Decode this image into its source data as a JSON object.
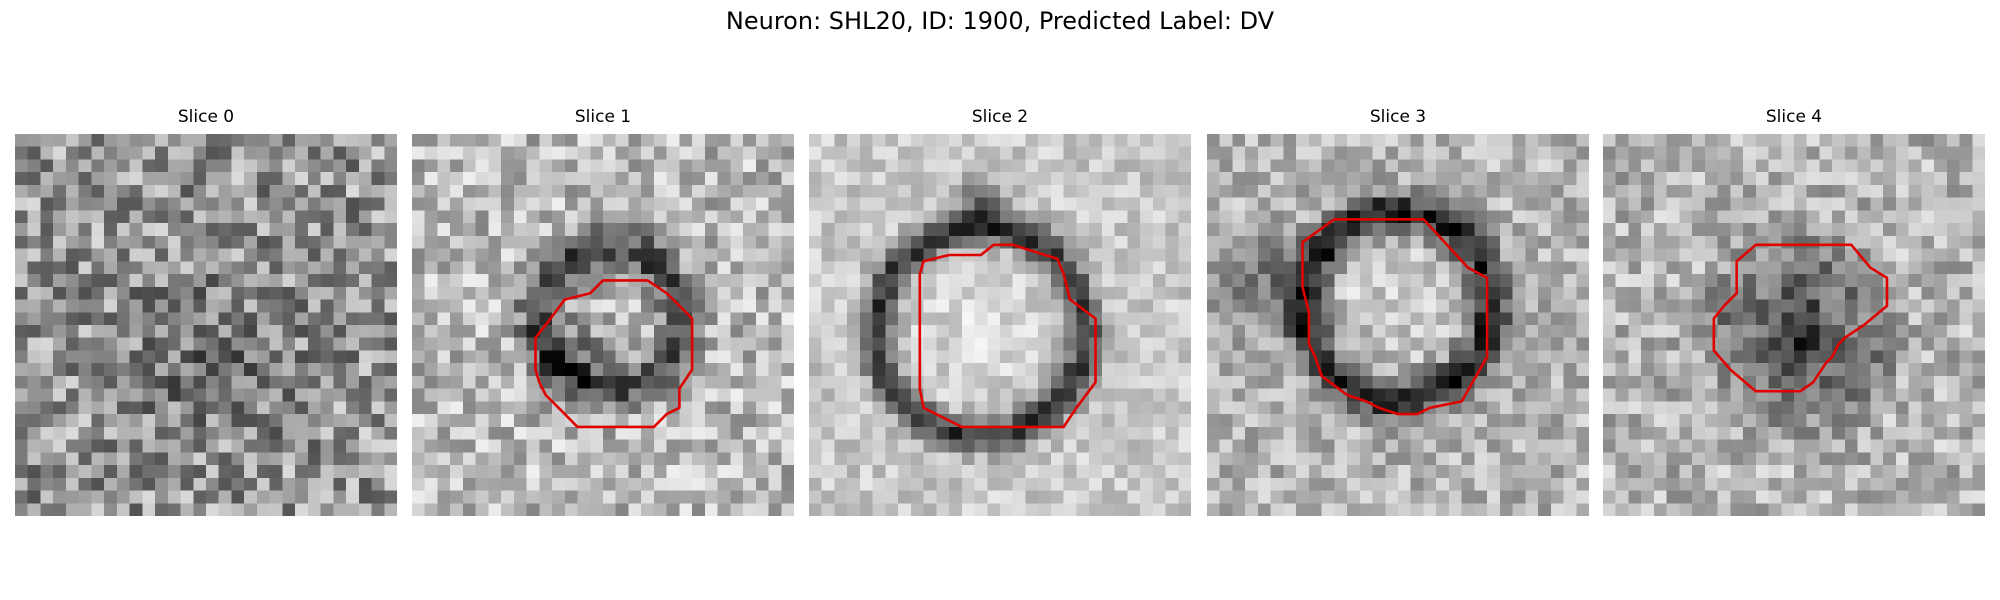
{
  "figure": {
    "title": "Neuron: SHL20, ID: 1900, Predicted Label: DV",
    "contour_color": "#e00000"
  },
  "slices": [
    {
      "title": "Slice 0",
      "content": "noisy grayscale patch, no outline"
    },
    {
      "title": "Slice 1",
      "content": "grayscale patch with dark ring and red contour"
    },
    {
      "title": "Slice 2",
      "content": "grayscale patch with bright cell body, dark ring and red contour"
    },
    {
      "title": "Slice 3",
      "content": "grayscale patch with bright cell body, dark ring and red contour"
    },
    {
      "title": "Slice 4",
      "content": "grayscale patch with dark blob and red contour"
    }
  ]
}
